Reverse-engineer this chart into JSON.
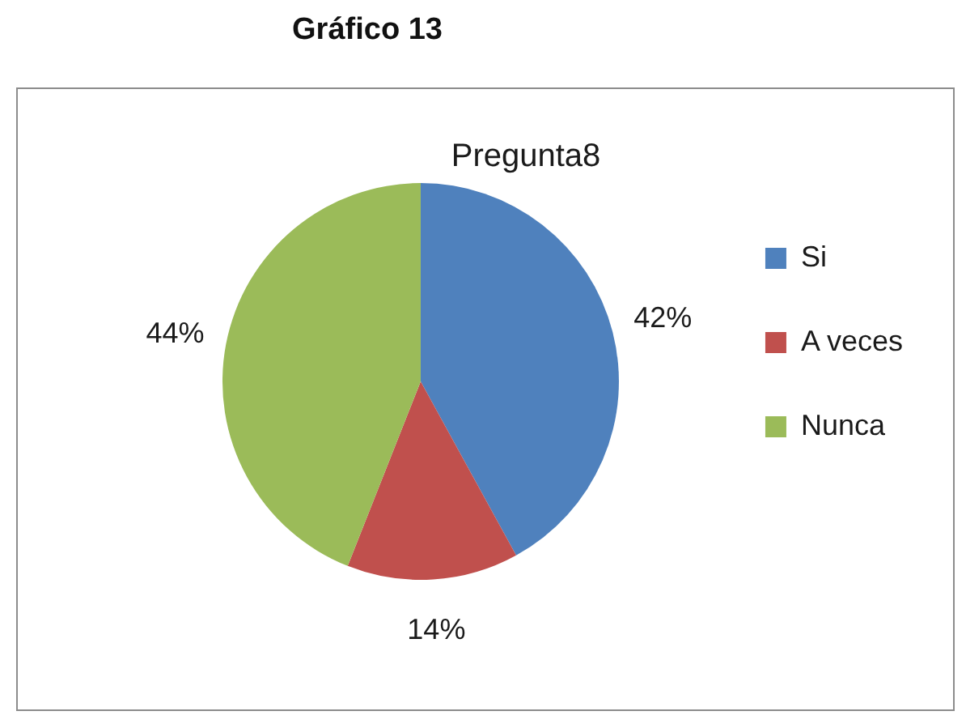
{
  "chart_data": {
    "type": "pie",
    "title": "Gráfico 13",
    "subtitle": "Pregunta8",
    "categories": [
      "Si",
      "A veces",
      "Nunca"
    ],
    "values": [
      42,
      14,
      44
    ],
    "value_labels": [
      "42%",
      "14%",
      "44%"
    ],
    "colors": [
      "#4f81bd",
      "#c0504d",
      "#9bbb59"
    ],
    "legend": "right"
  }
}
